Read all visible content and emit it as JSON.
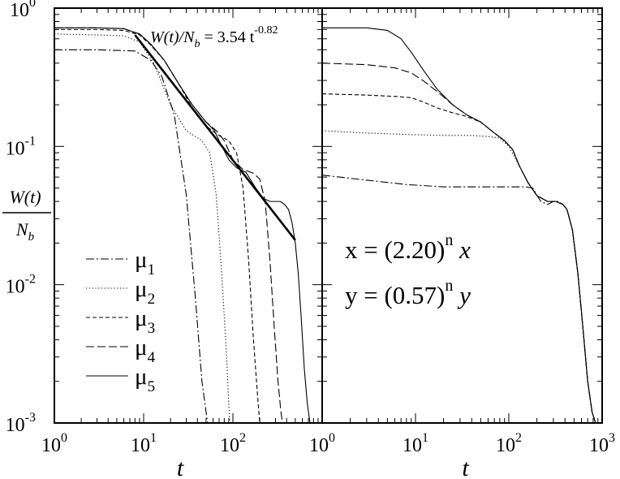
{
  "figure": {
    "ylabel_num": "W(t)",
    "ylabel_den": "N_b"
  },
  "chart_data": [
    {
      "type": "line",
      "xscale": "log",
      "yscale": "log",
      "xlim": [
        1,
        1000
      ],
      "ylim": [
        0.001,
        1
      ],
      "xlabel": "t",
      "x_ticks": [
        1,
        10,
        100,
        1000
      ],
      "x_tick_labels": [
        {
          "base": "10",
          "exp": "0"
        },
        {
          "base": "10",
          "exp": "1"
        },
        {
          "base": "10",
          "exp": "2"
        },
        {
          "base": "10",
          "exp": "3"
        }
      ],
      "y_ticks": [
        0.001,
        0.01,
        0.1,
        1
      ],
      "y_tick_labels": [
        {
          "base": "10",
          "exp": "-3"
        },
        {
          "base": "10",
          "exp": "-2"
        },
        {
          "base": "10",
          "exp": "-1"
        },
        {
          "base": "10",
          "exp": "0"
        }
      ],
      "legend": {
        "placement": "bottom-left"
      },
      "annotation": {
        "lhs": "W(t)/N",
        "lhs_sub": "b",
        "rhs": " = 3.54 t",
        "rhs_exp": "-0.82"
      },
      "fit_line": {
        "x": [
          8,
          500
        ],
        "y": [
          0.64,
          0.021
        ]
      },
      "series": [
        {
          "name": "μ",
          "sub": "1",
          "style": "dash-dot",
          "x": [
            1,
            3,
            8,
            12,
            16,
            22,
            30,
            38,
            45,
            52
          ],
          "y": [
            0.5,
            0.5,
            0.49,
            0.42,
            0.32,
            0.17,
            0.045,
            0.008,
            0.002,
            0.001
          ]
        },
        {
          "name": "μ",
          "sub": "2",
          "style": "dotted",
          "x": [
            1,
            3,
            6,
            9,
            13,
            20,
            30,
            45,
            55,
            65,
            75,
            85,
            92
          ],
          "y": [
            0.65,
            0.64,
            0.63,
            0.57,
            0.4,
            0.2,
            0.13,
            0.11,
            0.09,
            0.045,
            0.012,
            0.003,
            0.001
          ]
        },
        {
          "name": "μ",
          "sub": "3",
          "style": "dashed",
          "x": [
            1,
            3,
            6,
            9,
            12,
            17,
            25,
            35,
            50,
            70,
            90,
            110,
            130,
            150,
            170,
            190,
            200
          ],
          "y": [
            0.7,
            0.7,
            0.69,
            0.64,
            0.54,
            0.42,
            0.28,
            0.19,
            0.14,
            0.12,
            0.11,
            0.09,
            0.05,
            0.015,
            0.004,
            0.0015,
            0.001
          ]
        },
        {
          "name": "μ",
          "sub": "4",
          "style": "dashed-long",
          "x": [
            1,
            3,
            6,
            9,
            12,
            17,
            25,
            35,
            50,
            65,
            80,
            100,
            130,
            170,
            200,
            230,
            260,
            290,
            320,
            345,
            360
          ],
          "y": [
            0.72,
            0.72,
            0.71,
            0.65,
            0.55,
            0.42,
            0.28,
            0.2,
            0.15,
            0.13,
            0.11,
            0.08,
            0.068,
            0.064,
            0.058,
            0.04,
            0.015,
            0.005,
            0.002,
            0.0012,
            0.001
          ]
        },
        {
          "name": "μ",
          "sub": "5",
          "style": "solid",
          "x": [
            1,
            3,
            6,
            9,
            12,
            17,
            25,
            35,
            50,
            62,
            70,
            90,
            110,
            140,
            180,
            220,
            260,
            300,
            340,
            380,
            420,
            460,
            500,
            540,
            580,
            630,
            680,
            730,
            760
          ],
          "y": [
            0.72,
            0.72,
            0.71,
            0.65,
            0.55,
            0.42,
            0.28,
            0.2,
            0.15,
            0.13,
            0.11,
            0.08,
            0.07,
            0.065,
            0.05,
            0.042,
            0.04,
            0.04,
            0.04,
            0.038,
            0.035,
            0.028,
            0.02,
            0.012,
            0.006,
            0.0025,
            0.0014,
            0.001,
            0.001
          ]
        }
      ]
    },
    {
      "type": "line",
      "xscale": "log",
      "yscale": "log",
      "xlim": [
        1,
        1000
      ],
      "ylim": [
        0.001,
        1
      ],
      "xlabel": "t",
      "x_ticks": [
        1,
        10,
        100,
        1000
      ],
      "x_tick_labels": [
        {
          "base": "10",
          "exp": "0"
        },
        {
          "base": "10",
          "exp": "1"
        },
        {
          "base": "10",
          "exp": "2"
        },
        {
          "base": "10",
          "exp": "3"
        }
      ],
      "y_ticks": [
        0.001,
        0.01,
        0.1,
        1
      ],
      "annotations": [
        {
          "left": "x = (2.20)",
          "exp": "n",
          "right": " x"
        },
        {
          "left": "y = (0.57)",
          "exp": "n",
          "right": " y"
        }
      ],
      "series": [
        {
          "name": "μ",
          "sub": "1",
          "style": "dash-dot",
          "x": [
            1,
            3,
            8,
            20,
            50,
            100,
            150,
            180,
            220,
            260,
            300,
            340,
            380,
            420,
            480,
            550,
            620,
            700,
            780,
            850
          ],
          "y": [
            0.062,
            0.057,
            0.053,
            0.051,
            0.051,
            0.051,
            0.051,
            0.05,
            0.04,
            0.038,
            0.04,
            0.04,
            0.038,
            0.035,
            0.025,
            0.012,
            0.005,
            0.002,
            0.0012,
            0.001
          ]
        },
        {
          "name": "μ",
          "sub": "2",
          "style": "dotted",
          "x": [
            1,
            3,
            8,
            20,
            40,
            60,
            80,
            100,
            130,
            160,
            200,
            260,
            320,
            380,
            420,
            480,
            550,
            620,
            700,
            780,
            850
          ],
          "y": [
            0.13,
            0.125,
            0.122,
            0.12,
            0.12,
            0.118,
            0.115,
            0.1,
            0.072,
            0.055,
            0.044,
            0.04,
            0.04,
            0.038,
            0.035,
            0.025,
            0.012,
            0.005,
            0.002,
            0.0012,
            0.001
          ]
        },
        {
          "name": "μ",
          "sub": "3",
          "style": "dashed",
          "x": [
            1,
            3,
            6,
            9,
            12,
            17,
            25,
            35,
            50,
            70,
            90,
            110,
            130,
            160,
            200,
            260,
            320,
            380,
            420,
            480,
            550,
            620,
            700,
            780,
            850
          ],
          "y": [
            0.24,
            0.235,
            0.23,
            0.225,
            0.21,
            0.19,
            0.175,
            0.165,
            0.15,
            0.125,
            0.11,
            0.095,
            0.072,
            0.055,
            0.044,
            0.04,
            0.04,
            0.038,
            0.035,
            0.025,
            0.012,
            0.005,
            0.002,
            0.0012,
            0.001
          ]
        },
        {
          "name": "μ",
          "sub": "4",
          "style": "dashed-long",
          "x": [
            1,
            3,
            6,
            9,
            12,
            17,
            25,
            35,
            50,
            70,
            90,
            110,
            130,
            160,
            200,
            260,
            320,
            380,
            420,
            480,
            550,
            620,
            700,
            780,
            850
          ],
          "y": [
            0.4,
            0.39,
            0.37,
            0.34,
            0.3,
            0.25,
            0.2,
            0.17,
            0.15,
            0.125,
            0.11,
            0.095,
            0.072,
            0.055,
            0.044,
            0.04,
            0.04,
            0.038,
            0.035,
            0.025,
            0.012,
            0.005,
            0.002,
            0.0012,
            0.001
          ]
        },
        {
          "name": "μ",
          "sub": "5",
          "style": "solid",
          "x": [
            1,
            3,
            5,
            7,
            9,
            12,
            17,
            25,
            35,
            50,
            70,
            90,
            110,
            130,
            160,
            200,
            260,
            320,
            380,
            420,
            480,
            550,
            620,
            700,
            780,
            850
          ],
          "y": [
            0.72,
            0.72,
            0.69,
            0.6,
            0.48,
            0.36,
            0.26,
            0.2,
            0.17,
            0.15,
            0.125,
            0.11,
            0.095,
            0.072,
            0.055,
            0.044,
            0.04,
            0.04,
            0.038,
            0.035,
            0.025,
            0.012,
            0.005,
            0.002,
            0.0012,
            0.001
          ]
        }
      ]
    }
  ]
}
